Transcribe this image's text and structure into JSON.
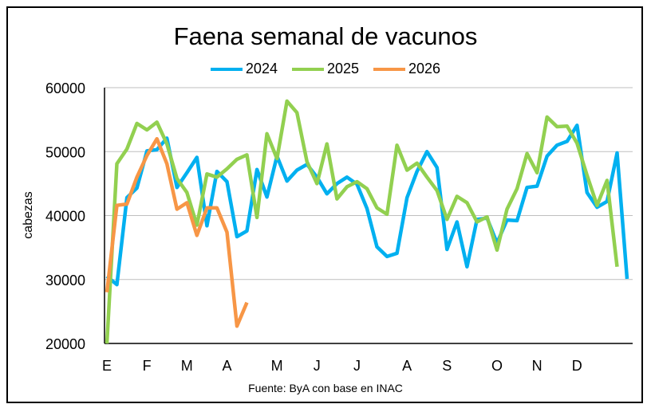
{
  "chart_data": {
    "type": "line",
    "title": "Faena semanal de vacunos",
    "ylabel": "cabezas",
    "xlabel": "",
    "source": "Fuente: ByA con base en INAC",
    "ylim": [
      20000,
      60000
    ],
    "yticks": [
      20000,
      30000,
      40000,
      50000,
      60000
    ],
    "ytick_labels": [
      "20000",
      "30000",
      "40000",
      "50000",
      "60000"
    ],
    "x_unit": "week of year (1-53)",
    "month_labels": [
      {
        "label": "E",
        "week": 1
      },
      {
        "label": "F",
        "week": 5
      },
      {
        "label": "M",
        "week": 9
      },
      {
        "label": "A",
        "week": 13
      },
      {
        "label": "M",
        "week": 18
      },
      {
        "label": "J",
        "week": 22
      },
      {
        "label": "J",
        "week": 26
      },
      {
        "label": "A",
        "week": 31
      },
      {
        "label": "S",
        "week": 35
      },
      {
        "label": "O",
        "week": 40
      },
      {
        "label": "N",
        "week": 44
      },
      {
        "label": "D",
        "week": 48
      }
    ],
    "grid": "horizontal",
    "legend": "top",
    "series": [
      {
        "name": "2024",
        "color": "#00B0F0",
        "values": [
          30500,
          29200,
          42800,
          44300,
          50100,
          50300,
          52100,
          44400,
          46700,
          49100,
          38400,
          46900,
          45300,
          36700,
          37600,
          47200,
          42900,
          49300,
          45400,
          47100,
          48000,
          46000,
          43400,
          45000,
          46000,
          44900,
          41100,
          35100,
          33600,
          34100,
          42800,
          46900,
          50000,
          47500,
          34700,
          39000,
          32000,
          39400,
          39600,
          35700,
          39300,
          39200,
          44400,
          44600,
          49300,
          51000,
          51600,
          54100,
          43600,
          41300,
          42200,
          49800,
          30100
        ]
      },
      {
        "name": "2025",
        "color": "#92D050",
        "values": [
          20000,
          48100,
          50400,
          54400,
          53400,
          54600,
          51200,
          45800,
          43600,
          38500,
          46500,
          46000,
          47300,
          48800,
          49500,
          39700,
          52800,
          48900,
          57900,
          56100,
          48400,
          45000,
          51200,
          42600,
          44500,
          45300,
          44200,
          41200,
          40200,
          51000,
          47100,
          48200,
          46000,
          43900,
          39400,
          43000,
          42000,
          39000,
          39800,
          34600,
          41000,
          44200,
          49700,
          46700,
          55400,
          53900,
          54000,
          51300,
          46300,
          41600,
          45500,
          32000
        ]
      },
      {
        "name": "2026",
        "color": "#F79646",
        "values": [
          28000,
          41600,
          41800,
          46000,
          49400,
          52000,
          48100,
          41000,
          42000,
          36900,
          41200,
          41200,
          37400,
          22700,
          26400
        ]
      }
    ]
  }
}
